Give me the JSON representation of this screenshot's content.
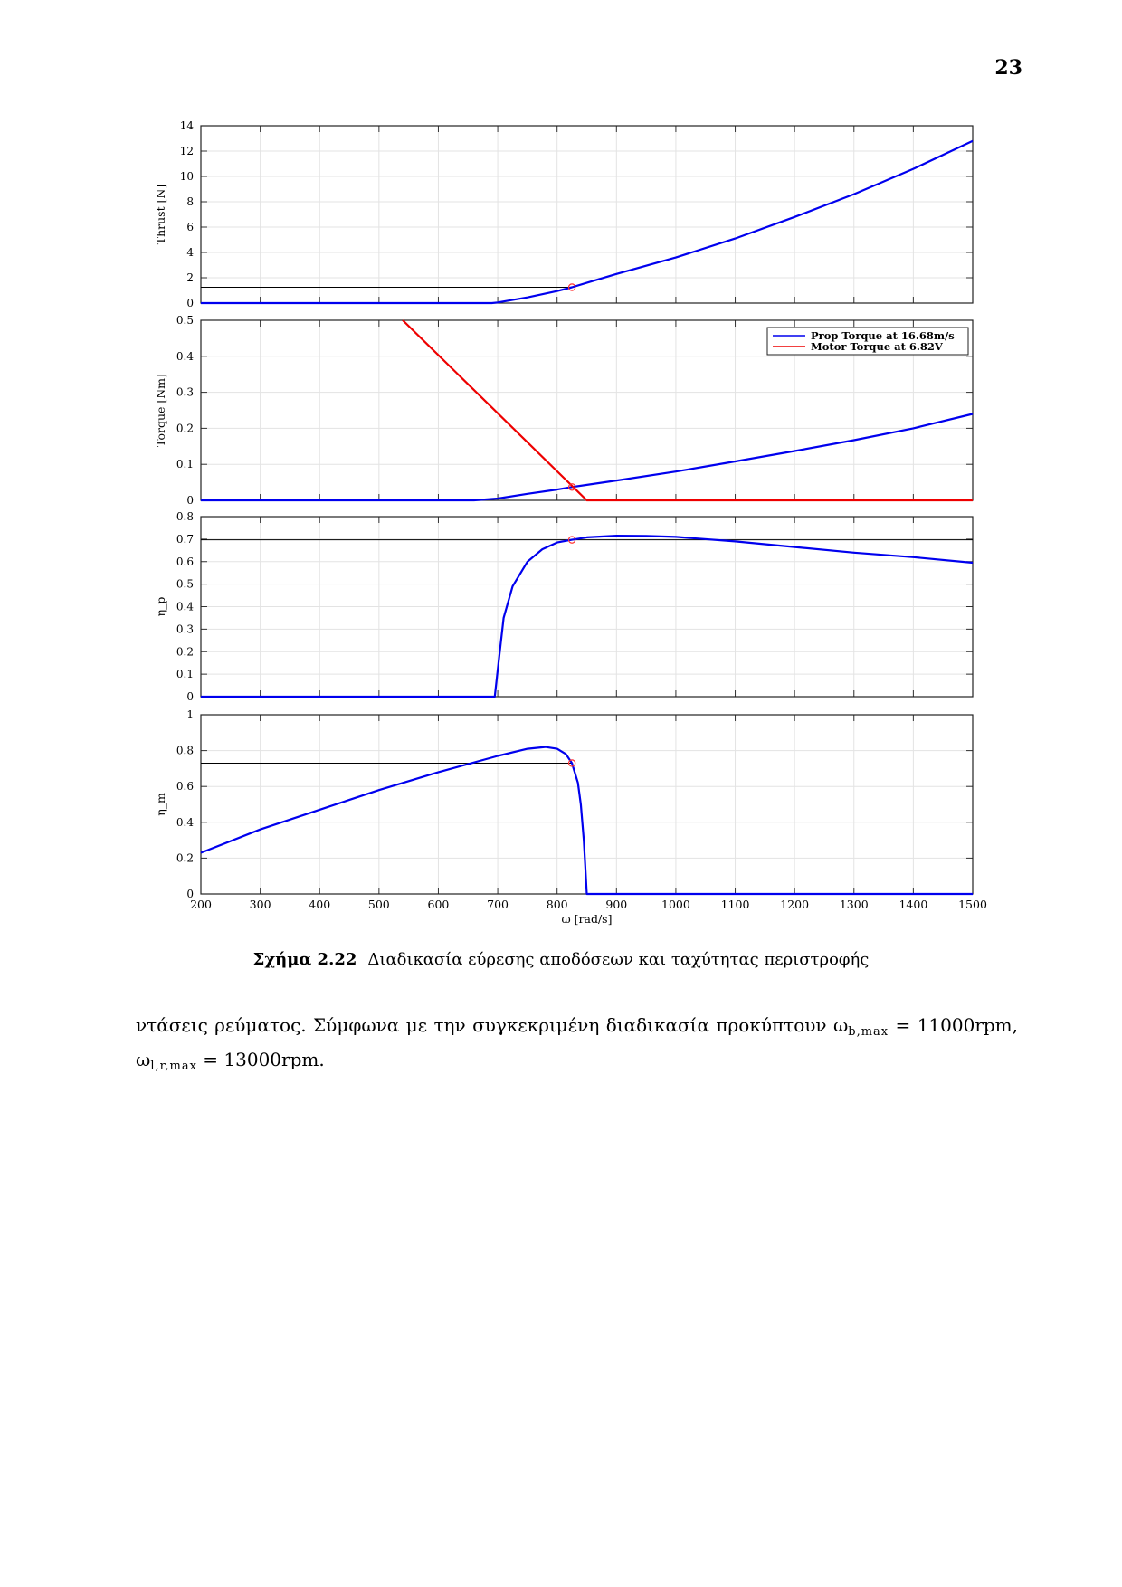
{
  "page": {
    "number": "23"
  },
  "figure": {
    "caption_label": "Σχήμα 2.22",
    "caption_text": "Διαδικασία εύρεσης αποδόσεων και ταχύτητας περιστροφής"
  },
  "paragraph": {
    "line1_prefix": "ντάσεις ρεύματος. Σύμφωνα με την συγκεκριμένη διαδικασία προκύπτουν ω",
    "line1_sub": "b,max",
    "line1_suffix": " = 11000rpm,",
    "line2_prefix": "ω",
    "line2_sub": "l,r,max",
    "line2_suffix": " = 13000rpm."
  },
  "chart_data": [
    {
      "type": "line",
      "ylabel": "Thrust [N]",
      "xlim": [
        200,
        1500
      ],
      "ylim": [
        0,
        14
      ],
      "yticks": [
        "0",
        "2",
        "4",
        "6",
        "8",
        "10",
        "12",
        "14"
      ],
      "grid": true,
      "series": [
        {
          "color": "#0000ee",
          "x": [
            200,
            690,
            700,
            750,
            800,
            825,
            850,
            900,
            1000,
            1100,
            1200,
            1300,
            1400,
            1500
          ],
          "y": [
            0,
            0,
            0.05,
            0.45,
            0.95,
            1.25,
            1.6,
            2.3,
            3.6,
            5.1,
            6.8,
            8.6,
            10.6,
            12.8
          ]
        }
      ],
      "reference_line": {
        "y": 1.25,
        "x_end": 825
      },
      "marker": {
        "x": 825,
        "y": 1.25,
        "color": "#ff3333"
      }
    },
    {
      "type": "line",
      "ylabel": "Torque [Nm]",
      "xlim": [
        200,
        1500
      ],
      "ylim": [
        0,
        0.5
      ],
      "yticks": [
        "0",
        "0.1",
        "0.2",
        "0.3",
        "0.4",
        "0.5"
      ],
      "grid": true,
      "legend": {
        "position": "top-right",
        "entries": [
          "Prop Torque at 16.68m/s",
          "Motor Torque at 6.82V"
        ]
      },
      "series": [
        {
          "name": "Prop Torque at 16.68m/s",
          "color": "#0000ee",
          "x": [
            200,
            660,
            700,
            750,
            800,
            825,
            900,
            1000,
            1100,
            1200,
            1300,
            1400,
            1500
          ],
          "y": [
            0,
            0,
            0.005,
            0.018,
            0.03,
            0.037,
            0.055,
            0.08,
            0.108,
            0.137,
            0.167,
            0.2,
            0.24
          ]
        },
        {
          "name": "Motor Torque at 6.82V",
          "color": "#ee0000",
          "x": [
            540,
            850,
            1500
          ],
          "y": [
            0.5,
            0,
            0
          ]
        }
      ],
      "marker": {
        "x": 825,
        "y": 0.037,
        "color": "#ff3333"
      }
    },
    {
      "type": "line",
      "ylabel": "η_p",
      "xlim": [
        200,
        1500
      ],
      "ylim": [
        0,
        0.8
      ],
      "yticks": [
        "0",
        "0.1",
        "0.2",
        "0.3",
        "0.4",
        "0.5",
        "0.6",
        "0.7",
        "0.8"
      ],
      "grid": true,
      "series": [
        {
          "color": "#0000ee",
          "x": [
            200,
            695,
            700,
            710,
            725,
            750,
            775,
            800,
            825,
            850,
            900,
            950,
            1000,
            1100,
            1200,
            1300,
            1400,
            1500
          ],
          "y": [
            0,
            0,
            0.12,
            0.35,
            0.49,
            0.6,
            0.655,
            0.685,
            0.697,
            0.708,
            0.715,
            0.714,
            0.71,
            0.69,
            0.665,
            0.64,
            0.62,
            0.595
          ]
        }
      ],
      "reference_line": {
        "y": 0.697,
        "x_start": 200,
        "x_end": 1500
      },
      "marker": {
        "x": 825,
        "y": 0.697,
        "color": "#ff3333"
      }
    },
    {
      "type": "line",
      "ylabel": "η_m",
      "xlabel": "ω [rad/s]",
      "xlim": [
        200,
        1500
      ],
      "ylim": [
        0,
        1
      ],
      "xticks": [
        "200",
        "300",
        "400",
        "500",
        "600",
        "700",
        "800",
        "900",
        "1000",
        "1100",
        "1200",
        "1300",
        "1400",
        "1500"
      ],
      "yticks": [
        "0",
        "0.2",
        "0.4",
        "0.6",
        "0.8",
        "1"
      ],
      "grid": true,
      "series": [
        {
          "color": "#0000ee",
          "x": [
            200,
            300,
            400,
            500,
            600,
            700,
            750,
            780,
            800,
            815,
            825,
            835,
            840,
            845,
            848,
            850,
            1500
          ],
          "y": [
            0.23,
            0.36,
            0.47,
            0.58,
            0.68,
            0.77,
            0.81,
            0.82,
            0.81,
            0.78,
            0.73,
            0.62,
            0.5,
            0.3,
            0.12,
            0,
            0
          ]
        }
      ],
      "reference_line": {
        "y": 0.73,
        "x_start": 200,
        "x_end": 825
      },
      "marker": {
        "x": 825,
        "y": 0.73,
        "color": "#ff3333"
      }
    }
  ]
}
